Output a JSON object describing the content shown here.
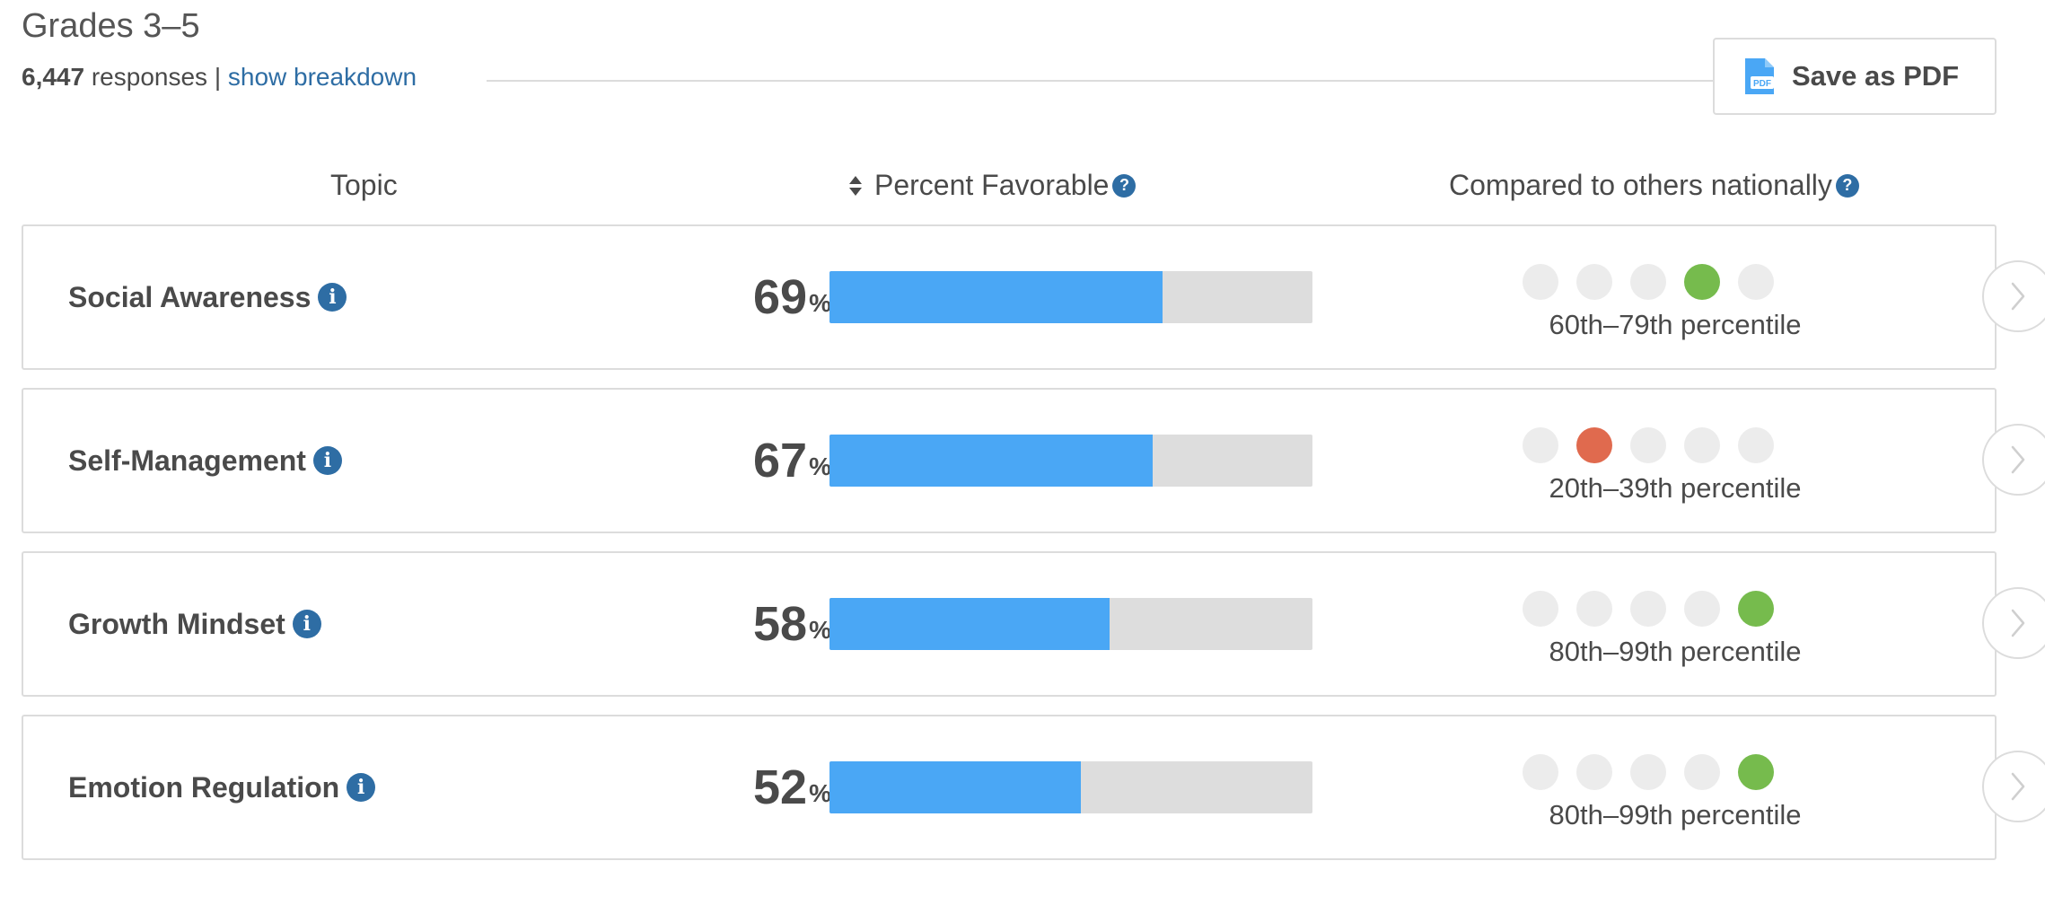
{
  "header": {
    "title": "Grades 3–5",
    "response_count": "6,447",
    "responses_label": "responses |",
    "breakdown_link": "show breakdown",
    "pdf_label": "Save as PDF",
    "pdf_icon": "pdf-file-icon"
  },
  "columns": {
    "topic": "Topic",
    "percent": "Percent Favorable",
    "compare": "Compared to others nationally",
    "help_glyph": "?"
  },
  "info_glyph": "i",
  "percent_symbol": "%",
  "colors": {
    "bar_fill": "#4aa7f5",
    "bar_track": "#dddddd",
    "dot_high": "#76bb4d",
    "dot_low": "#e06a4e",
    "dot_empty": "#ececec",
    "link": "#2e6da4"
  },
  "rows": [
    {
      "topic": "Social Awareness",
      "percent": "69",
      "favorable_fraction": 0.69,
      "dots": [
        "empty",
        "empty",
        "empty",
        "green",
        "empty"
      ],
      "percentile": "60th–79th percentile"
    },
    {
      "topic": "Self-Management",
      "percent": "67",
      "favorable_fraction": 0.67,
      "dots": [
        "empty",
        "red",
        "empty",
        "empty",
        "empty"
      ],
      "percentile": "20th–39th percentile"
    },
    {
      "topic": "Growth Mindset",
      "percent": "58",
      "favorable_fraction": 0.58,
      "dots": [
        "empty",
        "empty",
        "empty",
        "empty",
        "green"
      ],
      "percentile": "80th–99th percentile"
    },
    {
      "topic": "Emotion Regulation",
      "percent": "52",
      "favorable_fraction": 0.52,
      "dots": [
        "empty",
        "empty",
        "empty",
        "empty",
        "green"
      ],
      "percentile": "80th–99th percentile"
    }
  ]
}
